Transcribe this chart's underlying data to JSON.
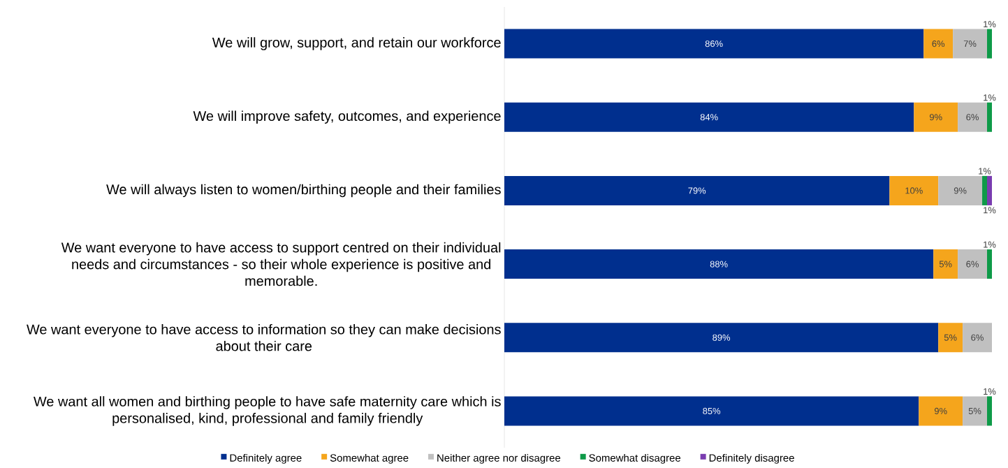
{
  "chart_data": {
    "type": "bar",
    "orientation": "horizontal",
    "stacked": true,
    "legend": "bottom",
    "categories": [
      "We will grow, support, and retain our workforce",
      "We will improve safety, outcomes, and experience",
      "We will always listen to women/birthing people and their families",
      "We want everyone to have access to support centred on their individual needs and circumstances - so their whole experience is positive and memorable.",
      "We want everyone to have access to information so they can make decisions about their care",
      "We want all women and birthing people to have safe maternity care which is personalised, kind, professional and family friendly"
    ],
    "series": [
      {
        "name": "Definitely agree",
        "color": "#002f8e",
        "values": [
          86,
          84,
          79,
          88,
          89,
          85
        ],
        "value_labels": [
          "86%",
          "84%",
          "79%",
          "88%",
          "89%",
          "85%"
        ]
      },
      {
        "name": "Somewhat agree",
        "color": "#f5a51c",
        "values": [
          6,
          9,
          10,
          5,
          5,
          9
        ],
        "value_labels": [
          "6%",
          "9%",
          "10%",
          "5%",
          "5%",
          "9%"
        ]
      },
      {
        "name": "Neither agree nor disagree",
        "color": "#c0c0c0",
        "values": [
          7,
          6,
          9,
          6,
          6,
          5
        ],
        "value_labels": [
          "7%",
          "6%",
          "9%",
          "6%",
          "6%",
          "5%"
        ]
      },
      {
        "name": "Somewhat disagree",
        "color": "#0e9a48",
        "values": [
          1,
          1,
          1,
          1,
          null,
          1
        ],
        "value_labels": [
          "1%",
          "1%",
          "1%",
          "1%",
          null,
          "1%"
        ]
      },
      {
        "name": "Definitely disagree",
        "color": "#7a3cb0",
        "values": [
          null,
          null,
          1,
          null,
          null,
          null
        ],
        "value_labels": [
          null,
          null,
          "1%",
          null,
          null,
          null
        ]
      }
    ]
  }
}
